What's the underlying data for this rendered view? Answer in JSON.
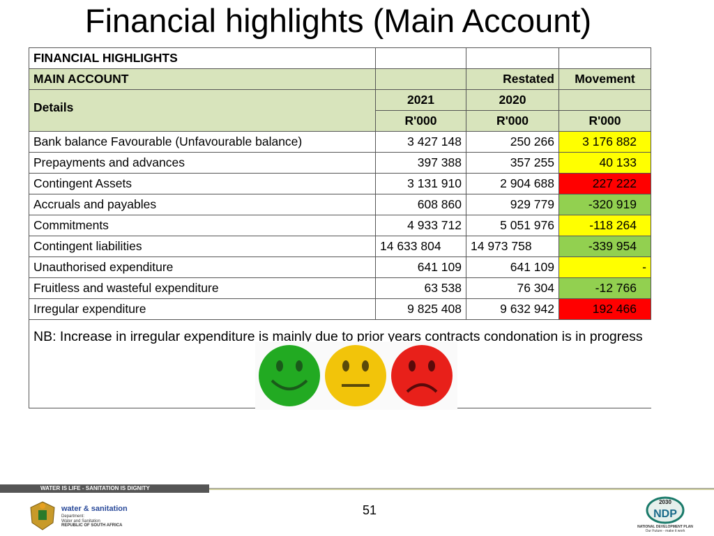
{
  "title": "Financial highlights (Main Account)",
  "table": {
    "header_title": "FINANCIAL HIGHLIGHTS",
    "header_sub": "MAIN ACCOUNT",
    "restated_label": "Restated",
    "movement_label": "Movement",
    "details_label": "Details",
    "year1": "2021",
    "year2": "2020",
    "unit": "R'000",
    "rows": [
      {
        "label": "Bank balance Favourable (Unfavourable balance)",
        "v2021": "3 427 148",
        "v2020": "250 266",
        "movement": "3 176 882",
        "status": "yellow"
      },
      {
        "label": "Prepayments and advances",
        "v2021": "397 388",
        "v2020": "357 255",
        "movement": "40 133",
        "status": "yellow"
      },
      {
        "label": "Contingent Assets",
        "v2021": "3 131 910",
        "v2020": "2 904 688",
        "movement": "227 222",
        "status": "red"
      },
      {
        "label": "Accruals and payables",
        "v2021": "608 860",
        "v2020": "929 779",
        "movement": "-320 919",
        "status": "green"
      },
      {
        "label": "Commitments",
        "v2021": "4 933 712",
        "v2020": "5 051 976",
        "movement": "-118 264",
        "status": "yellow"
      },
      {
        "label": "Contingent liabilities",
        "v2021": "14 633 804",
        "v2020": "14 973 758",
        "movement": "-339 954",
        "status": "green"
      },
      {
        "label": "Unauthorised expenditure",
        "v2021": "641 109",
        "v2020": "641 109",
        "movement": "-",
        "status": "yellow"
      },
      {
        "label": "Fruitless and wasteful expenditure",
        "v2021": "63 538",
        "v2020": "76 304",
        "movement": "-12 766",
        "status": "green"
      },
      {
        "label": "Irregular expenditure",
        "v2021": "9 825 408",
        "v2020": "9 632 942",
        "movement": "192 466",
        "status": "red"
      }
    ],
    "note": "NB: Increase in irregular expenditure is mainly due to prior years contracts condonation is in progress"
  },
  "status_colors": {
    "yellow": "#ffff00",
    "red": "#ff0000",
    "green": "#92d050"
  },
  "smileys": [
    {
      "icon": "happy-face-icon",
      "color": "#22aa22"
    },
    {
      "icon": "neutral-face-icon",
      "color": "#f2c40a"
    },
    {
      "icon": "sad-face-icon",
      "color": "#e8201a"
    }
  ],
  "footer": {
    "slogan": "WATER IS LIFE - SANITATION IS DIGNITY",
    "page_number": "51",
    "dept_name": "water & sanitation",
    "dept_line1": "Department:",
    "dept_line2": "Water and Sanitation",
    "dept_line3": "REPUBLIC OF SOUTH AFRICA",
    "ndp_year": "2030",
    "ndp_logo": "NDP",
    "ndp_line1": "NATIONAL DEVELOPMENT PLAN",
    "ndp_line2": "Our Future - make it work"
  }
}
